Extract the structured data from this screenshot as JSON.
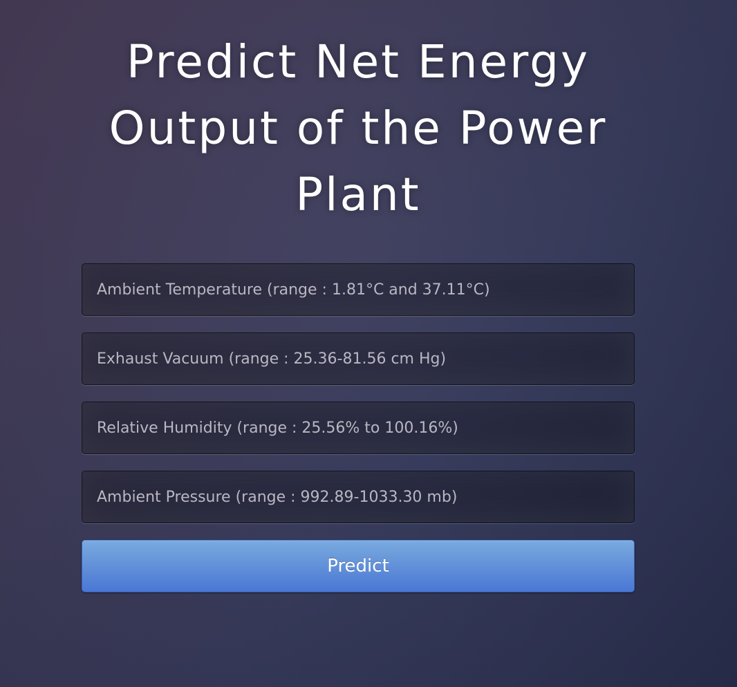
{
  "page": {
    "title": "Predict Net Energy Output of the Power Plant"
  },
  "form": {
    "fields": [
      {
        "placeholder": "Ambient Temperature (range : 1.81°C and 37.11°C)",
        "value": ""
      },
      {
        "placeholder": "Exhaust Vacuum (range : 25.36-81.56 cm Hg)",
        "value": ""
      },
      {
        "placeholder": "Relative Humidity (range : 25.56% to 100.16%)",
        "value": ""
      },
      {
        "placeholder": "Ambient Pressure (range : 992.89-1033.30 mb)",
        "value": ""
      }
    ],
    "submit_label": "Predict"
  },
  "colors": {
    "background": "#3d3a5a",
    "button": "#5b8ad8",
    "title_text": "#ffffff",
    "placeholder_text": "#b9b7c2"
  }
}
